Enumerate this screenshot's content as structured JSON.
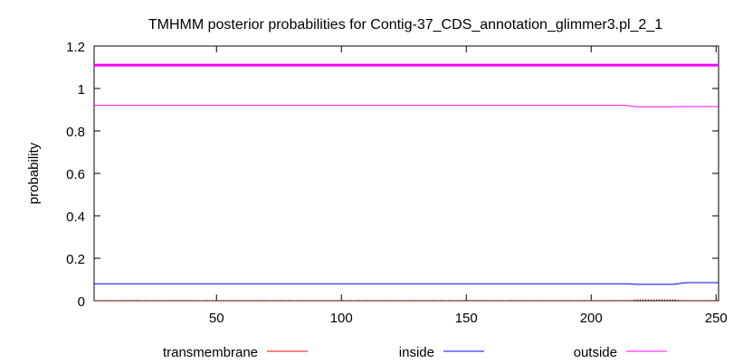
{
  "chart_data": {
    "type": "line",
    "title": "TMHMM posterior probabilities for Contig-37_CDS_annotation_glimmer3.pl_2_1",
    "xlabel": "",
    "ylabel": "probability",
    "xlim": [
      1,
      251
    ],
    "ylim": [
      0,
      1.2
    ],
    "x_ticks": [
      "50",
      "100",
      "150",
      "200",
      "250"
    ],
    "x_tick_values": [
      50,
      100,
      150,
      200,
      250
    ],
    "y_ticks": [
      "0",
      "0.2",
      "0.4",
      "0.6",
      "0.8",
      "1",
      "1.2"
    ],
    "y_tick_values": [
      0,
      0.2,
      0.4,
      0.6,
      0.8,
      1.0,
      1.2
    ],
    "grid": false,
    "legend_position": "bottom",
    "reference_line": {
      "y": 1.11,
      "color": "#ff00ff"
    },
    "series": [
      {
        "name": "transmembrane",
        "color": "#ff0000",
        "style": "dotted",
        "points": [
          [
            1,
            0
          ],
          [
            216,
            0
          ],
          [
            218,
            0.004
          ],
          [
            234,
            0.004
          ],
          [
            236,
            0
          ],
          [
            251,
            0
          ]
        ]
      },
      {
        "name": "inside",
        "color": "#0000ff",
        "style": "solid",
        "points": [
          [
            1,
            0.08
          ],
          [
            214,
            0.08
          ],
          [
            218,
            0.077
          ],
          [
            233,
            0.077
          ],
          [
            238,
            0.085
          ],
          [
            251,
            0.085
          ]
        ]
      },
      {
        "name": "outside",
        "color": "#ff00ff",
        "style": "solid",
        "points": [
          [
            1,
            0.92
          ],
          [
            214,
            0.92
          ],
          [
            218,
            0.914
          ],
          [
            233,
            0.914
          ],
          [
            238,
            0.915
          ],
          [
            251,
            0.915
          ]
        ]
      }
    ]
  }
}
